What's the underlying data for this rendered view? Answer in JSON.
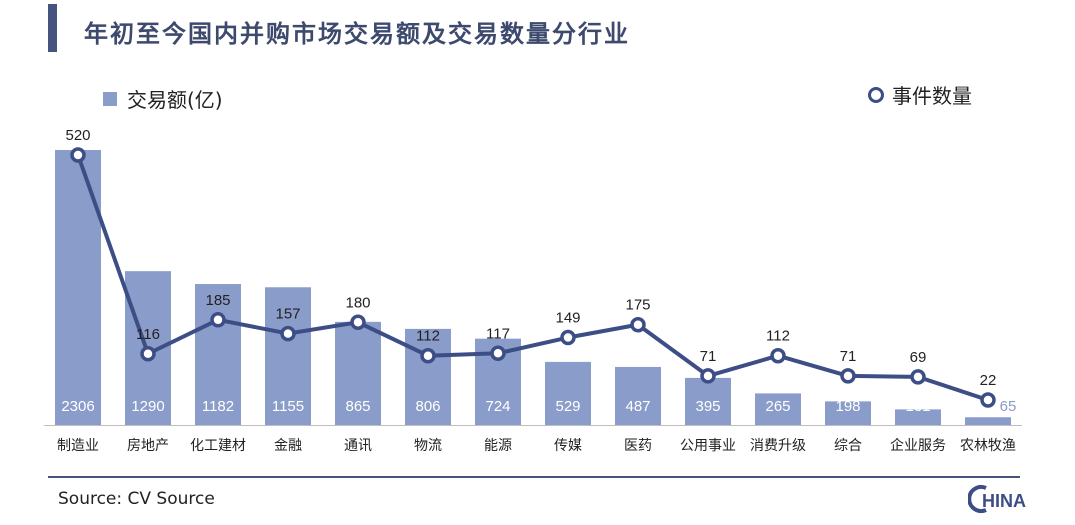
{
  "title": "年初至今国内并购市场交易额及交易数量分行业",
  "legend": {
    "bar_label": "交易额(亿)",
    "line_label": "事件数量"
  },
  "source": "Source: CV Source",
  "logo": {
    "text": "HINA"
  },
  "colors": {
    "bar": "#8a9cc9",
    "line": "#3d4e86",
    "title_bar": "#44547f",
    "title": "#3d4a6e"
  },
  "chart_data": {
    "type": "bar",
    "categories": [
      "制造业",
      "房地产",
      "化工建材",
      "金融",
      "通讯",
      "物流",
      "能源",
      "传媒",
      "医药",
      "公用事业",
      "消费升级",
      "综合",
      "企业服务",
      "农林牧渔"
    ],
    "series": [
      {
        "name": "交易额(亿)",
        "type": "bar",
        "values": [
          2306,
          1290,
          1182,
          1155,
          865,
          806,
          724,
          529,
          487,
          395,
          265,
          198,
          131,
          65
        ]
      },
      {
        "name": "事件数量",
        "type": "line",
        "values": [
          520,
          116,
          185,
          157,
          180,
          112,
          117,
          149,
          175,
          71,
          112,
          71,
          69,
          22
        ]
      }
    ],
    "legend": "top",
    "grid": false
  }
}
